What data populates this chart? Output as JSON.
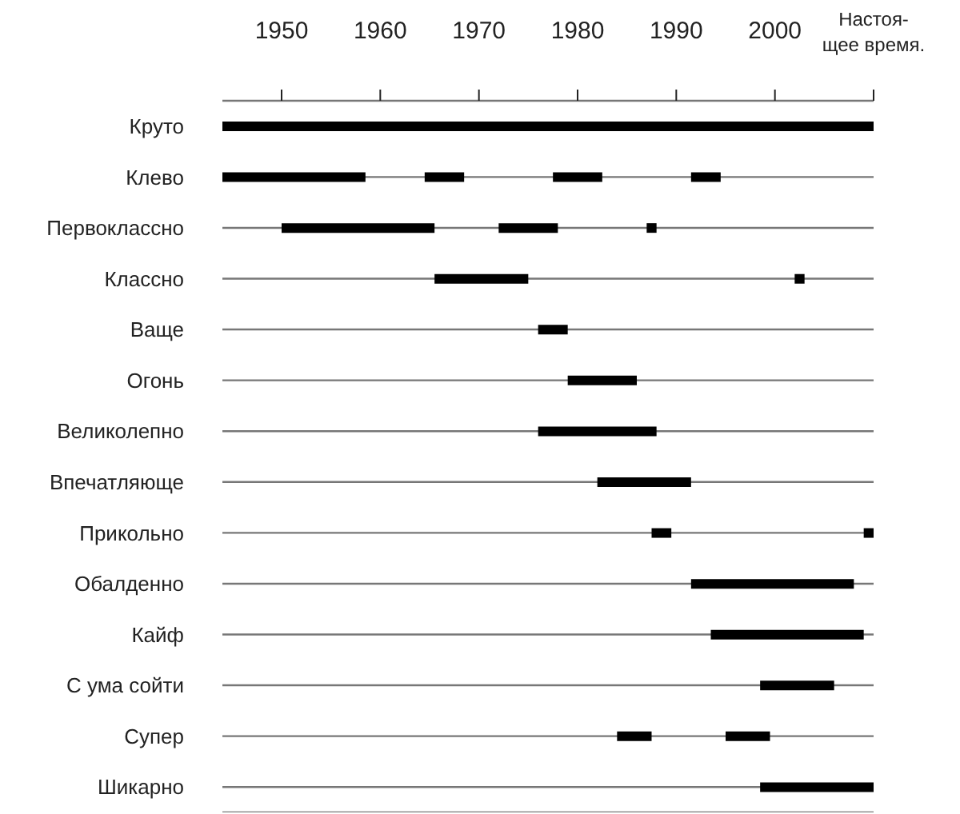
{
  "chart_data": {
    "type": "bar",
    "orientation": "horizontal",
    "categories": [
      "Круто",
      "Клево",
      "Первоклассно",
      "Классно",
      "Ваще",
      "Огонь",
      "Великолепно",
      "Впечатляюще",
      "Прикольно",
      "Обалденно",
      "Кайф",
      "С ума сойти",
      "Супер",
      "Шикарно"
    ],
    "series": [
      {
        "color": "#000000",
        "base": [
          1944,
          1944,
          1950,
          1965.5,
          1976,
          1979,
          1976,
          1982,
          1987.5,
          1991.5,
          1993.5,
          1998.5,
          1984,
          1998.5
        ],
        "values": [
          66,
          14.5,
          15.5,
          9.5,
          3,
          7,
          12,
          9.5,
          2,
          16.5,
          15.5,
          7.5,
          3.5,
          11.5
        ]
      },
      {
        "color": "#000000",
        "base": [
          null,
          1964.5,
          1972,
          2002,
          null,
          null,
          null,
          null,
          2009,
          null,
          null,
          null,
          1995,
          null
        ],
        "values": [
          null,
          4,
          6,
          1,
          null,
          null,
          null,
          null,
          1,
          null,
          null,
          null,
          4.5,
          null
        ]
      },
      {
        "color": "#000000",
        "base": [
          null,
          1977.5,
          1987,
          null,
          null,
          null,
          null,
          null,
          null,
          null,
          null,
          null,
          null,
          null
        ],
        "values": [
          null,
          5,
          1,
          null,
          null,
          null,
          null,
          null,
          null,
          null,
          null,
          null,
          null,
          null
        ]
      },
      {
        "color": "#000000",
        "base": [
          null,
          1991.5,
          null,
          null,
          null,
          null,
          null,
          null,
          null,
          null,
          null,
          null,
          null,
          null
        ],
        "values": [
          null,
          3,
          null,
          null,
          null,
          null,
          null,
          null,
          null,
          null,
          null,
          null,
          null,
          null
        ]
      }
    ],
    "xlim": [
      1944,
      2010
    ],
    "xticks": [
      1950,
      1960,
      1970,
      1980,
      1990,
      2000,
      {
        "value": 2010,
        "label": "Настоя-\nщее время."
      }
    ],
    "grid": "y",
    "legend": false
  }
}
